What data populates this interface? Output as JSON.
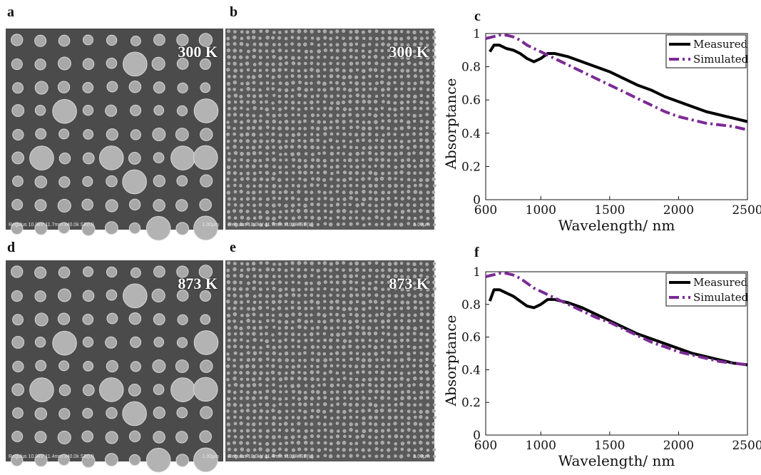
{
  "panels": {
    "a": {
      "letter": "a",
      "temp": "300 K",
      "meta": "Regulus 10.0kV 11.7mm x40.0k SE(U)",
      "scale": "1.00μm"
    },
    "b": {
      "letter": "b",
      "temp": "300 K",
      "meta": "Regulus 10.0kV 11.7mm x10.0k SE(U)",
      "scale": "5.00μm"
    },
    "d": {
      "letter": "d",
      "temp": "873 K",
      "meta": "Regulus 10.0kV 11.4mm x40.0k SE(U)",
      "scale": "1.00μm"
    },
    "e": {
      "letter": "e",
      "temp": "873 K",
      "meta": "Regulus 10.0kV 11.4mm x10.0k SE(U)",
      "scale": "5.00μm"
    },
    "c": {
      "letter": "c"
    },
    "f": {
      "letter": "f"
    }
  },
  "colors": {
    "measured": "#000000",
    "simulated": "#7b2a96"
  },
  "chart_data": [
    {
      "type": "line",
      "panel": "c",
      "xlabel": "Wavelength/ nm",
      "ylabel": "Absorptance",
      "xlim": [
        600,
        2500
      ],
      "ylim": [
        0,
        1
      ],
      "xticks": [
        600,
        1000,
        1500,
        2000,
        2500
      ],
      "yticks": [
        0,
        0.2,
        0.4,
        0.6,
        0.8,
        1
      ],
      "ytick_labels": [
        "0",
        "0.2",
        "0.4",
        "0.6",
        "0.8",
        "1"
      ],
      "legend": "top-right",
      "grid": false,
      "series": [
        {
          "name": "Measured",
          "style": "solid",
          "x": [
            630,
            660,
            700,
            750,
            800,
            850,
            900,
            950,
            1000,
            1050,
            1100,
            1200,
            1300,
            1400,
            1500,
            1600,
            1700,
            1800,
            1900,
            2000,
            2100,
            2200,
            2300,
            2400,
            2500
          ],
          "y": [
            0.89,
            0.93,
            0.93,
            0.91,
            0.9,
            0.88,
            0.85,
            0.83,
            0.85,
            0.88,
            0.88,
            0.86,
            0.83,
            0.8,
            0.77,
            0.73,
            0.69,
            0.66,
            0.62,
            0.59,
            0.56,
            0.53,
            0.51,
            0.49,
            0.47
          ]
        },
        {
          "name": "Simulated",
          "style": "dash-dot",
          "x": [
            600,
            650,
            700,
            750,
            800,
            850,
            900,
            950,
            1000,
            1050,
            1100,
            1200,
            1300,
            1400,
            1500,
            1600,
            1700,
            1800,
            1900,
            2000,
            2100,
            2200,
            2300,
            2400,
            2500
          ],
          "y": [
            0.97,
            0.98,
            0.99,
            0.99,
            0.98,
            0.96,
            0.93,
            0.91,
            0.89,
            0.87,
            0.85,
            0.81,
            0.77,
            0.73,
            0.69,
            0.65,
            0.61,
            0.57,
            0.53,
            0.5,
            0.48,
            0.46,
            0.45,
            0.44,
            0.42
          ]
        }
      ]
    },
    {
      "type": "line",
      "panel": "f",
      "xlabel": "Wavelength/ nm",
      "ylabel": "Absorptance",
      "xlim": [
        600,
        2500
      ],
      "ylim": [
        0,
        1
      ],
      "xticks": [
        600,
        1000,
        1500,
        2000,
        2500
      ],
      "yticks": [
        0,
        0.2,
        0.4,
        0.6,
        0.8,
        1
      ],
      "ytick_labels": [
        "0",
        "0.2",
        "0.4",
        "0.6",
        "0.8",
        "1"
      ],
      "legend": "top-right",
      "grid": false,
      "series": [
        {
          "name": "Measured",
          "style": "solid",
          "x": [
            630,
            660,
            700,
            750,
            800,
            850,
            900,
            950,
            1000,
            1050,
            1100,
            1200,
            1300,
            1400,
            1500,
            1600,
            1700,
            1800,
            1900,
            2000,
            2100,
            2200,
            2300,
            2400,
            2500
          ],
          "y": [
            0.82,
            0.89,
            0.89,
            0.87,
            0.85,
            0.82,
            0.79,
            0.78,
            0.8,
            0.83,
            0.83,
            0.81,
            0.78,
            0.74,
            0.7,
            0.66,
            0.62,
            0.59,
            0.56,
            0.53,
            0.5,
            0.48,
            0.46,
            0.44,
            0.43
          ]
        },
        {
          "name": "Simulated",
          "style": "dash-dot",
          "x": [
            600,
            650,
            700,
            750,
            800,
            850,
            900,
            950,
            1000,
            1050,
            1100,
            1200,
            1300,
            1400,
            1500,
            1600,
            1700,
            1800,
            1900,
            2000,
            2100,
            2200,
            2300,
            2400,
            2500
          ],
          "y": [
            0.97,
            0.98,
            0.99,
            0.99,
            0.98,
            0.96,
            0.93,
            0.9,
            0.88,
            0.86,
            0.84,
            0.8,
            0.76,
            0.72,
            0.69,
            0.65,
            0.61,
            0.57,
            0.54,
            0.51,
            0.49,
            0.47,
            0.45,
            0.44,
            0.43
          ]
        }
      ]
    }
  ]
}
